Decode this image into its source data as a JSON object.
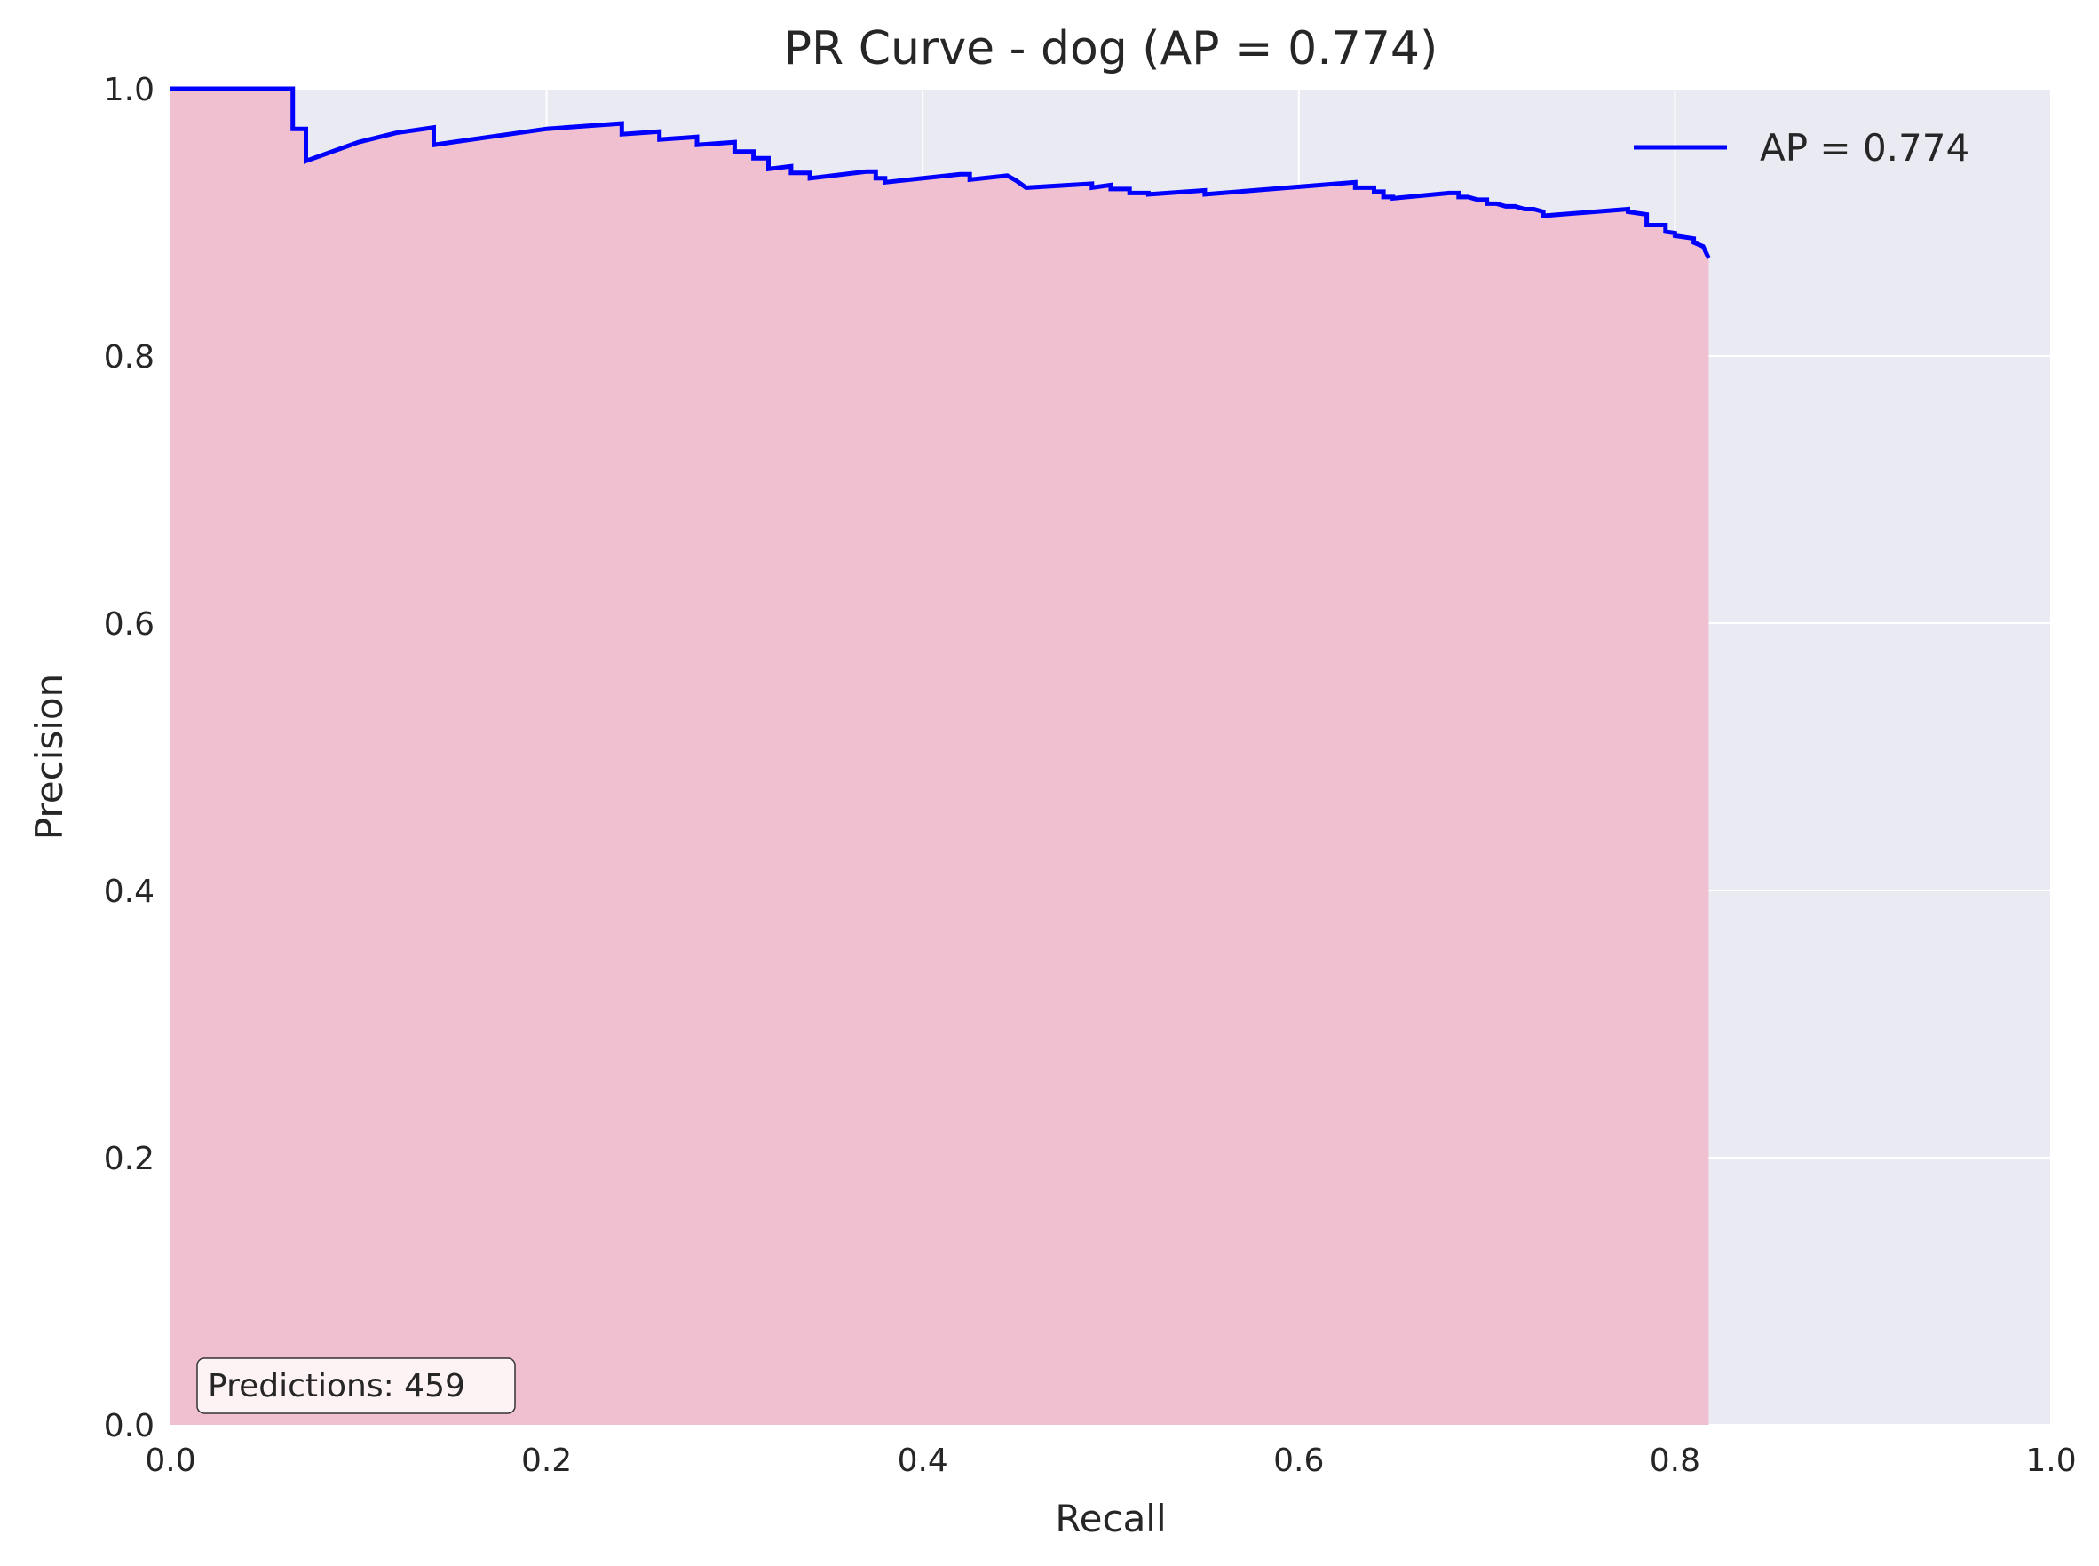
{
  "chart_data": {
    "type": "area",
    "title": "PR Curve - dog (AP = 0.774)",
    "xlabel": "Recall",
    "ylabel": "Precision",
    "xlim": [
      0.0,
      1.0
    ],
    "ylim": [
      0.0,
      1.0
    ],
    "xticks": [
      "0.0",
      "0.2",
      "0.4",
      "0.6",
      "0.8",
      "1.0"
    ],
    "yticks": [
      "0.0",
      "0.2",
      "0.4",
      "0.6",
      "0.8",
      "1.0"
    ],
    "grid": true,
    "legend_position": "top-right",
    "colors": {
      "line": "#0000ff",
      "fill": "#f0c0d0",
      "plot_background": "#eaeaf2",
      "grid": "#ffffff",
      "text": "#262626"
    },
    "series": [
      {
        "name": "AP = 0.774",
        "x": [
          0.0,
          0.065,
          0.065,
          0.072,
          0.072,
          0.1,
          0.12,
          0.14,
          0.14,
          0.2,
          0.24,
          0.24,
          0.26,
          0.26,
          0.28,
          0.28,
          0.3,
          0.3,
          0.31,
          0.31,
          0.318,
          0.318,
          0.33,
          0.33,
          0.34,
          0.34,
          0.37,
          0.375,
          0.375,
          0.38,
          0.38,
          0.42,
          0.425,
          0.425,
          0.445,
          0.45,
          0.455,
          0.49,
          0.49,
          0.5,
          0.5,
          0.51,
          0.51,
          0.52,
          0.52,
          0.55,
          0.55,
          0.63,
          0.63,
          0.64,
          0.64,
          0.645,
          0.645,
          0.65,
          0.65,
          0.68,
          0.685,
          0.685,
          0.69,
          0.695,
          0.7,
          0.7,
          0.705,
          0.71,
          0.715,
          0.72,
          0.725,
          0.73,
          0.73,
          0.775,
          0.775,
          0.785,
          0.785,
          0.795,
          0.795,
          0.8,
          0.8,
          0.81,
          0.81,
          0.815,
          0.818
        ],
        "y": [
          1.0,
          1.0,
          0.97,
          0.97,
          0.946,
          0.96,
          0.967,
          0.971,
          0.958,
          0.97,
          0.974,
          0.966,
          0.968,
          0.962,
          0.964,
          0.958,
          0.96,
          0.953,
          0.953,
          0.948,
          0.948,
          0.94,
          0.942,
          0.937,
          0.937,
          0.933,
          0.938,
          0.938,
          0.933,
          0.933,
          0.93,
          0.936,
          0.936,
          0.932,
          0.935,
          0.931,
          0.926,
          0.929,
          0.926,
          0.928,
          0.925,
          0.925,
          0.922,
          0.922,
          0.921,
          0.924,
          0.921,
          0.93,
          0.926,
          0.926,
          0.923,
          0.923,
          0.919,
          0.919,
          0.918,
          0.922,
          0.922,
          0.919,
          0.919,
          0.917,
          0.917,
          0.914,
          0.914,
          0.912,
          0.912,
          0.91,
          0.91,
          0.908,
          0.905,
          0.91,
          0.908,
          0.906,
          0.898,
          0.898,
          0.893,
          0.892,
          0.89,
          0.888,
          0.885,
          0.882,
          0.873
        ]
      }
    ],
    "fill_under_curve": true,
    "annotation": "Predictions: 459"
  }
}
